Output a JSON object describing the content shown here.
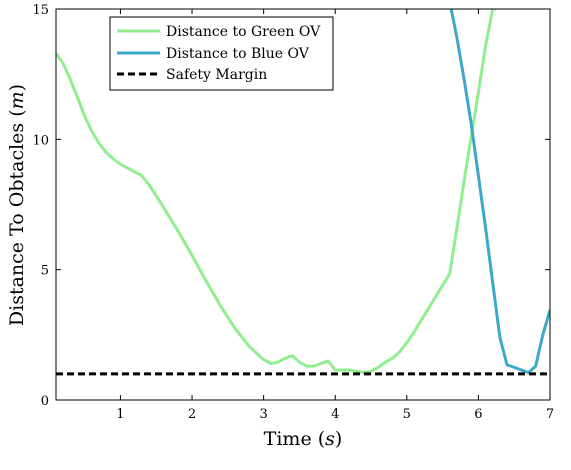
{
  "chart_data": {
    "type": "line",
    "title": "",
    "xlabel": "Time (s)",
    "ylabel": "Distance To Obtacles (m)",
    "xlabel_parts": {
      "before": "Time (",
      "var": "s",
      "after": ")"
    },
    "ylabel_parts": {
      "before": "Distance To Obtacles (",
      "var": "m",
      "after": ")"
    },
    "xlim": [
      0.1,
      7
    ],
    "ylim": [
      0,
      15
    ],
    "xticks": [
      1,
      2,
      3,
      4,
      5,
      6,
      7
    ],
    "yticks": [
      0,
      5,
      10,
      15
    ],
    "grid": false,
    "legend_placement": "top-left",
    "series": [
      {
        "name": "Distance to Green OV",
        "color": "#90EE90",
        "style": "solid",
        "x": [
          0.1,
          0.2,
          0.3,
          0.4,
          0.5,
          0.6,
          0.7,
          0.8,
          0.9,
          1.0,
          1.1,
          1.2,
          1.3,
          1.4,
          1.6,
          1.8,
          2.0,
          2.2,
          2.4,
          2.6,
          2.8,
          3.0,
          3.1,
          3.2,
          3.3,
          3.4,
          3.5,
          3.6,
          3.7,
          3.8,
          3.9,
          4.0,
          4.1,
          4.2,
          4.3,
          4.4,
          4.5,
          4.6,
          4.7,
          4.8,
          4.9,
          5.0,
          5.1,
          5.2,
          5.3,
          5.4,
          5.5,
          5.6,
          5.7,
          5.8,
          5.9,
          6.0,
          6.1,
          6.2,
          6.25
        ],
        "y": [
          13.3,
          12.9,
          12.3,
          11.6,
          10.9,
          10.3,
          9.85,
          9.5,
          9.25,
          9.05,
          8.9,
          8.75,
          8.6,
          8.25,
          7.4,
          6.5,
          5.55,
          4.55,
          3.6,
          2.75,
          2.05,
          1.55,
          1.4,
          1.45,
          1.6,
          1.7,
          1.45,
          1.3,
          1.3,
          1.4,
          1.5,
          1.15,
          1.15,
          1.15,
          1.1,
          1.05,
          1.1,
          1.25,
          1.45,
          1.6,
          1.85,
          2.2,
          2.6,
          3.05,
          3.5,
          3.95,
          4.4,
          4.85,
          6.6,
          8.4,
          10.1,
          11.8,
          13.6,
          15.0,
          15.0
        ]
      },
      {
        "name": "Distance to Blue OV",
        "color": "#3DA9C8",
        "style": "solid",
        "x": [
          5.62,
          5.7,
          5.8,
          5.9,
          6.0,
          6.1,
          6.2,
          6.3,
          6.4,
          6.5,
          6.6,
          6.7,
          6.8,
          6.9,
          7.0
        ],
        "y": [
          15.0,
          13.9,
          12.3,
          10.6,
          8.6,
          6.6,
          4.5,
          2.4,
          1.35,
          1.25,
          1.15,
          1.05,
          1.3,
          2.5,
          3.45
        ]
      },
      {
        "name": "Safety Margin",
        "color": "#000000",
        "style": "dashed",
        "x": [
          0.1,
          7
        ],
        "y": [
          1,
          1
        ]
      }
    ]
  }
}
